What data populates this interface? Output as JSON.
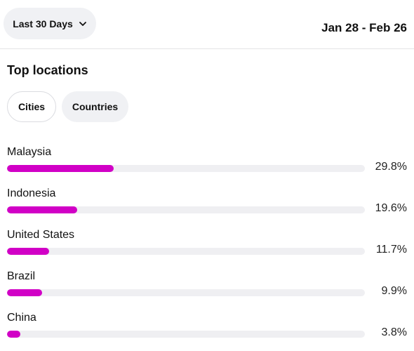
{
  "header": {
    "range_label": "Last 30 Days",
    "range_icon": "chevron-down-icon",
    "date_range": "Jan 28 - Feb 26"
  },
  "section": {
    "title": "Top locations",
    "tabs": [
      {
        "label": "Cities",
        "selected": false
      },
      {
        "label": "Countries",
        "selected": true
      }
    ]
  },
  "locations": [
    {
      "name": "Malaysia",
      "percent_label": "29.8%",
      "fill_fraction": 0.298
    },
    {
      "name": "Indonesia",
      "percent_label": "19.6%",
      "fill_fraction": 0.196
    },
    {
      "name": "United States",
      "percent_label": "11.7%",
      "fill_fraction": 0.117
    },
    {
      "name": "Brazil",
      "percent_label": "9.9%",
      "fill_fraction": 0.099
    },
    {
      "name": "China",
      "percent_label": "3.8%",
      "fill_fraction": 0.038
    }
  ],
  "colors": {
    "bar_fill": "#d100c6",
    "bar_track": "#efeff2",
    "pill_bg": "#f0f1f4"
  }
}
